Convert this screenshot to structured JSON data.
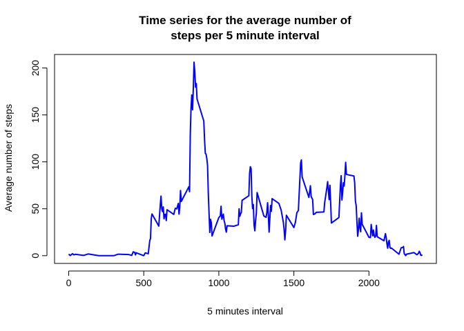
{
  "chart_data": {
    "type": "line",
    "title": [
      "Time series for the average number of",
      "steps per 5 minute interval"
    ],
    "x_label": "5 minutes interval",
    "y_label": "Average number of steps",
    "color": "#0000ff",
    "x": [
      0,
      10,
      25,
      35,
      45,
      100,
      130,
      200,
      230,
      300,
      330,
      400,
      420,
      430,
      440,
      445,
      450,
      500,
      510,
      530,
      540,
      545,
      550,
      555,
      600,
      610,
      615,
      620,
      625,
      630,
      635,
      640,
      645,
      650,
      655,
      700,
      710,
      720,
      730,
      735,
      740,
      745,
      750,
      800,
      805,
      810,
      815,
      820,
      825,
      830,
      835,
      840,
      845,
      850,
      855,
      900,
      905,
      910,
      915,
      920,
      925,
      930,
      935,
      940,
      945,
      950,
      955,
      1000,
      1010,
      1015,
      1020,
      1030,
      1035,
      1040,
      1045,
      1050,
      1055,
      1100,
      1130,
      1135,
      1140,
      1145,
      1150,
      1155,
      1200,
      1205,
      1210,
      1215,
      1220,
      1225,
      1230,
      1235,
      1240,
      1245,
      1250,
      1255,
      1300,
      1315,
      1320,
      1325,
      1330,
      1335,
      1340,
      1345,
      1350,
      1355,
      1400,
      1415,
      1430,
      1435,
      1440,
      1445,
      1450,
      1500,
      1510,
      1520,
      1530,
      1545,
      1550,
      1555,
      1600,
      1610,
      1615,
      1625,
      1630,
      1640,
      1645,
      1650,
      1700,
      1705,
      1720,
      1725,
      1730,
      1735,
      1740,
      1745,
      1750,
      1800,
      1805,
      1810,
      1815,
      1820,
      1825,
      1830,
      1835,
      1840,
      1845,
      1850,
      1900,
      1905,
      1910,
      1915,
      1920,
      1925,
      1930,
      1935,
      1940,
      1945,
      1950,
      1955,
      2000,
      2010,
      2015,
      2020,
      2025,
      2030,
      2035,
      2040,
      2045,
      2050,
      2055,
      2100,
      2110,
      2115,
      2120,
      2125,
      2130,
      2135,
      2140,
      2145,
      2150,
      2200,
      2215,
      2225,
      2230,
      2235,
      2245,
      2250,
      2300,
      2320,
      2330,
      2335,
      2340,
      2345,
      2350,
      2355
    ],
    "values": [
      1.72,
      0.13,
      2.09,
      0.87,
      1.47,
      0.32,
      1.83,
      0,
      0,
      0,
      1.62,
      1.19,
      0.34,
      4.11,
      3.49,
      0.83,
      3.11,
      0,
      3,
      2.09,
      16,
      18.3,
      39.5,
      44.5,
      31.5,
      53.8,
      63.5,
      50,
      47,
      52,
      39.3,
      44,
      44.2,
      37.4,
      49,
      44,
      50.5,
      49.9,
      55.7,
      44.3,
      52.3,
      69.5,
      57.8,
      73.4,
      68.2,
      129.4,
      157.5,
      171.2,
      155.4,
      177.3,
      206.2,
      195.9,
      179.6,
      183.4,
      167,
      143.5,
      124,
      109.1,
      108.1,
      103.7,
      95.97,
      66.2,
      45.2,
      24.8,
      38.8,
      35,
      21,
      40.6,
      42.4,
      52.7,
      38.9,
      44.3,
      37.4,
      34.7,
      28.3,
      25.1,
      31.9,
      31.4,
      33,
      50,
      42,
      44.6,
      46,
      59,
      63.9,
      87.6,
      94.8,
      92.8,
      63.4,
      50.2,
      54.5,
      32.4,
      26.5,
      37.7,
      45.1,
      67.3,
      42.3,
      40.9,
      46.2,
      56.4,
      42.8,
      25.1,
      39.96,
      53.5,
      47.3,
      60.8,
      55.7,
      48.7,
      35.4,
      27.9,
      16.8,
      26.8,
      43.1,
      30,
      35.5,
      45.9,
      48.1,
      98.7,
      102.1,
      83.96,
      62.1,
      74.5,
      63.2,
      59.8,
      43.9,
      44.6,
      45.5,
      46.2,
      46.6,
      56.3,
      72.7,
      78.9,
      68.9,
      59.7,
      75.1,
      56.5,
      34.8,
      40.7,
      58,
      74.7,
      85.3,
      59.3,
      67.8,
      77.7,
      74.2,
      85.3,
      99.5,
      86.6,
      84.9,
      77.8,
      58,
      53.4,
      36.3,
      20.7,
      27.4,
      40,
      30.2,
      25.5,
      45.7,
      33.5,
      19.6,
      19.3,
      33.3,
      26.8,
      21.2,
      27.3,
      21.3,
      19.5,
      21.3,
      32.3,
      20.2,
      15.9,
      23.5,
      19.2,
      12.5,
      8,
      14.7,
      16.3,
      8.7,
      7.8,
      8.1,
      1.6,
      8.5,
      8.7,
      9.8,
      2.2,
      0.1,
      1.6,
      3.3,
      1,
      2.6,
      4.7,
      3.3,
      0.6,
      0.2,
      1.08
    ],
    "xlim": [
      -94.2,
      2449.2
    ],
    "ylim": [
      -8.247,
      214.417
    ],
    "xticks": [
      0,
      500,
      1000,
      1500,
      2000
    ],
    "yticks": [
      0,
      50,
      100,
      150,
      200
    ]
  }
}
